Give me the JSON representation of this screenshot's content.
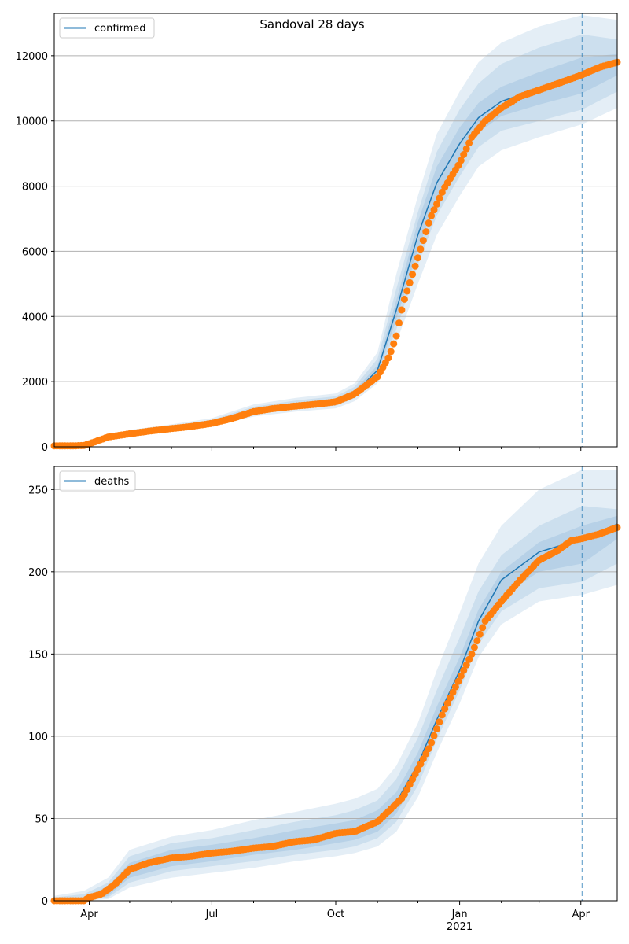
{
  "title": "Sandoval 28 days",
  "colors": {
    "model_line": "#1f77b4",
    "band": "#1f77b4",
    "observed": "#ff7f0e",
    "grid": "#b0b0b0",
    "forecast_marker": "#1f77b4"
  },
  "x_axis": {
    "range": [
      "2020-03-06",
      "2021-04-28"
    ],
    "major_ticks": [
      {
        "date": "2020-04-01",
        "label": "Apr",
        "sublabel": ""
      },
      {
        "date": "2020-07-01",
        "label": "Jul",
        "sublabel": ""
      },
      {
        "date": "2020-10-01",
        "label": "Oct",
        "sublabel": ""
      },
      {
        "date": "2021-01-01",
        "label": "Jan",
        "sublabel": "2021"
      },
      {
        "date": "2021-04-01",
        "label": "Apr",
        "sublabel": ""
      }
    ],
    "minor_ticks": [
      "2020-05-01",
      "2020-06-01",
      "2020-08-01",
      "2020-09-01",
      "2020-11-01",
      "2020-12-01",
      "2021-02-01",
      "2021-03-01",
      "2021-05-01"
    ],
    "forecast_start": "2021-04-02"
  },
  "chart_data": [
    {
      "type": "line",
      "legend": "confirmed",
      "legend_position": "upper left",
      "grid": "horizontal",
      "ylim": [
        0,
        13300
      ],
      "yticks": [
        0,
        2000,
        4000,
        6000,
        8000,
        10000,
        12000
      ],
      "model": {
        "x": [
          "2020-03-06",
          "2020-03-28",
          "2020-04-15",
          "2020-05-01",
          "2020-06-01",
          "2020-07-01",
          "2020-08-01",
          "2020-09-01",
          "2020-10-01",
          "2020-10-15",
          "2020-11-01",
          "2020-11-15",
          "2020-12-01",
          "2020-12-15",
          "2021-01-01",
          "2021-01-15",
          "2021-02-01",
          "2021-03-01",
          "2021-04-02",
          "2021-04-28"
        ],
        "y": [
          30,
          40,
          250,
          420,
          580,
          740,
          1100,
          1280,
          1400,
          1650,
          2350,
          4200,
          6500,
          8100,
          9300,
          10100,
          10600,
          11000,
          11400,
          11750
        ]
      },
      "bands": [
        {
          "lower": [
            20,
            25,
            200,
            350,
            490,
            620,
            930,
            1080,
            1180,
            1400,
            1950,
            3200,
            5000,
            6500,
            7700,
            8600,
            9100,
            9500,
            9900,
            10400
          ],
          "upper": [
            45,
            60,
            310,
            520,
            690,
            880,
            1300,
            1500,
            1640,
            1950,
            2900,
            5300,
            7700,
            9600,
            10900,
            11800,
            12400,
            12900,
            13250,
            13100
          ]
        },
        {
          "lower": [
            22,
            30,
            215,
            375,
            520,
            665,
            995,
            1160,
            1260,
            1490,
            2100,
            3600,
            5600,
            7100,
            8300,
            9200,
            9700,
            10000,
            10350,
            10900
          ],
          "upper": [
            40,
            52,
            290,
            480,
            650,
            830,
            1230,
            1420,
            1550,
            1840,
            2700,
            4850,
            7200,
            9050,
            10350,
            11150,
            11750,
            12250,
            12650,
            12500
          ]
        },
        {
          "lower": [
            25,
            35,
            230,
            395,
            550,
            700,
            1040,
            1210,
            1320,
            1560,
            2220,
            3900,
            6050,
            7600,
            8800,
            9650,
            10150,
            10500,
            10850,
            11400
          ],
          "upper": [
            36,
            46,
            270,
            450,
            615,
            785,
            1160,
            1350,
            1480,
            1740,
            2500,
            4500,
            6900,
            8600,
            9800,
            10550,
            11050,
            11500,
            11950,
            12050
          ]
        }
      ],
      "observed": {
        "x": [
          "2020-03-06",
          "2020-03-20",
          "2020-03-28",
          "2020-04-05",
          "2020-04-15",
          "2020-05-01",
          "2020-05-15",
          "2020-06-01",
          "2020-06-15",
          "2020-07-01",
          "2020-07-15",
          "2020-08-01",
          "2020-08-15",
          "2020-09-01",
          "2020-09-15",
          "2020-10-01",
          "2020-10-15",
          "2020-11-01",
          "2020-11-10",
          "2020-11-15",
          "2020-11-20",
          "2020-12-01",
          "2020-12-10",
          "2020-12-20",
          "2021-01-01",
          "2021-01-10",
          "2021-01-20",
          "2021-02-01",
          "2021-02-15",
          "2021-03-01",
          "2021-03-15",
          "2021-04-01",
          "2021-04-15",
          "2021-04-28"
        ],
        "y": [
          30,
          30,
          40,
          150,
          300,
          400,
          480,
          560,
          620,
          720,
          860,
          1080,
          1170,
          1250,
          1300,
          1380,
          1620,
          2150,
          2800,
          3400,
          4400,
          5800,
          7000,
          7900,
          8700,
          9500,
          10000,
          10400,
          10750,
          10950,
          11150,
          11400,
          11650,
          11800
        ]
      }
    },
    {
      "type": "line",
      "legend": "deaths",
      "legend_position": "upper left",
      "grid": "horizontal",
      "ylim": [
        0,
        264
      ],
      "yticks": [
        0,
        50,
        100,
        150,
        200,
        250
      ],
      "model": {
        "x": [
          "2020-03-06",
          "2020-03-28",
          "2020-04-15",
          "2020-05-01",
          "2020-06-01",
          "2020-07-01",
          "2020-08-01",
          "2020-09-01",
          "2020-10-01",
          "2020-10-15",
          "2020-11-01",
          "2020-11-15",
          "2020-12-01",
          "2020-12-15",
          "2021-01-01",
          "2021-01-15",
          "2021-02-01",
          "2021-03-01",
          "2021-04-02",
          "2021-04-28"
        ],
        "y": [
          0,
          1,
          6,
          19,
          26,
          29,
          33,
          37,
          41,
          43,
          49,
          60,
          83,
          110,
          140,
          170,
          195,
          212,
          220,
          229
        ]
      },
      "bands": [
        {
          "lower": [
            0,
            0,
            1,
            8,
            14,
            17,
            20,
            24,
            27,
            29,
            33,
            42,
            63,
            90,
            120,
            148,
            168,
            182,
            186,
            192
          ],
          "upper": [
            3,
            6,
            14,
            31,
            39,
            43,
            49,
            54,
            59,
            62,
            68,
            82,
            108,
            140,
            175,
            205,
            228,
            250,
            262,
            262
          ]
        },
        {
          "lower": [
            0,
            0,
            2,
            11,
            18,
            21,
            24,
            28,
            31,
            33,
            38,
            48,
            70,
            98,
            128,
            156,
            176,
            190,
            194,
            205
          ],
          "upper": [
            2,
            4,
            11,
            27,
            35,
            38,
            43,
            48,
            52,
            55,
            61,
            74,
            99,
            128,
            160,
            188,
            210,
            228,
            240,
            238
          ]
        },
        {
          "lower": [
            0,
            0,
            3,
            14,
            21,
            24,
            28,
            31,
            35,
            37,
            42,
            53,
            76,
            104,
            134,
            163,
            185,
            200,
            205,
            220
          ],
          "upper": [
            1,
            2,
            9,
            23,
            31,
            34,
            38,
            43,
            47,
            49,
            55,
            66,
            90,
            118,
            148,
            177,
            200,
            218,
            228,
            234
          ]
        }
      ],
      "observed": {
        "x": [
          "2020-03-06",
          "2020-03-28",
          "2020-04-01",
          "2020-04-10",
          "2020-04-20",
          "2020-05-01",
          "2020-05-15",
          "2020-06-01",
          "2020-06-15",
          "2020-07-01",
          "2020-07-15",
          "2020-08-01",
          "2020-08-15",
          "2020-09-01",
          "2020-09-15",
          "2020-10-01",
          "2020-10-15",
          "2020-11-01",
          "2020-11-10",
          "2020-11-20",
          "2020-12-01",
          "2020-12-10",
          "2020-12-20",
          "2021-01-01",
          "2021-01-10",
          "2021-01-20",
          "2021-02-01",
          "2021-02-15",
          "2021-03-01",
          "2021-03-15",
          "2021-03-25",
          "2021-04-01",
          "2021-04-15",
          "2021-04-28"
        ],
        "y": [
          0,
          0,
          2,
          4,
          10,
          19,
          23,
          26,
          27,
          29,
          30,
          32,
          33,
          36,
          37,
          41,
          42,
          48,
          55,
          63,
          80,
          94,
          115,
          135,
          150,
          170,
          182,
          195,
          207,
          213,
          219,
          220,
          223,
          227
        ]
      }
    }
  ]
}
